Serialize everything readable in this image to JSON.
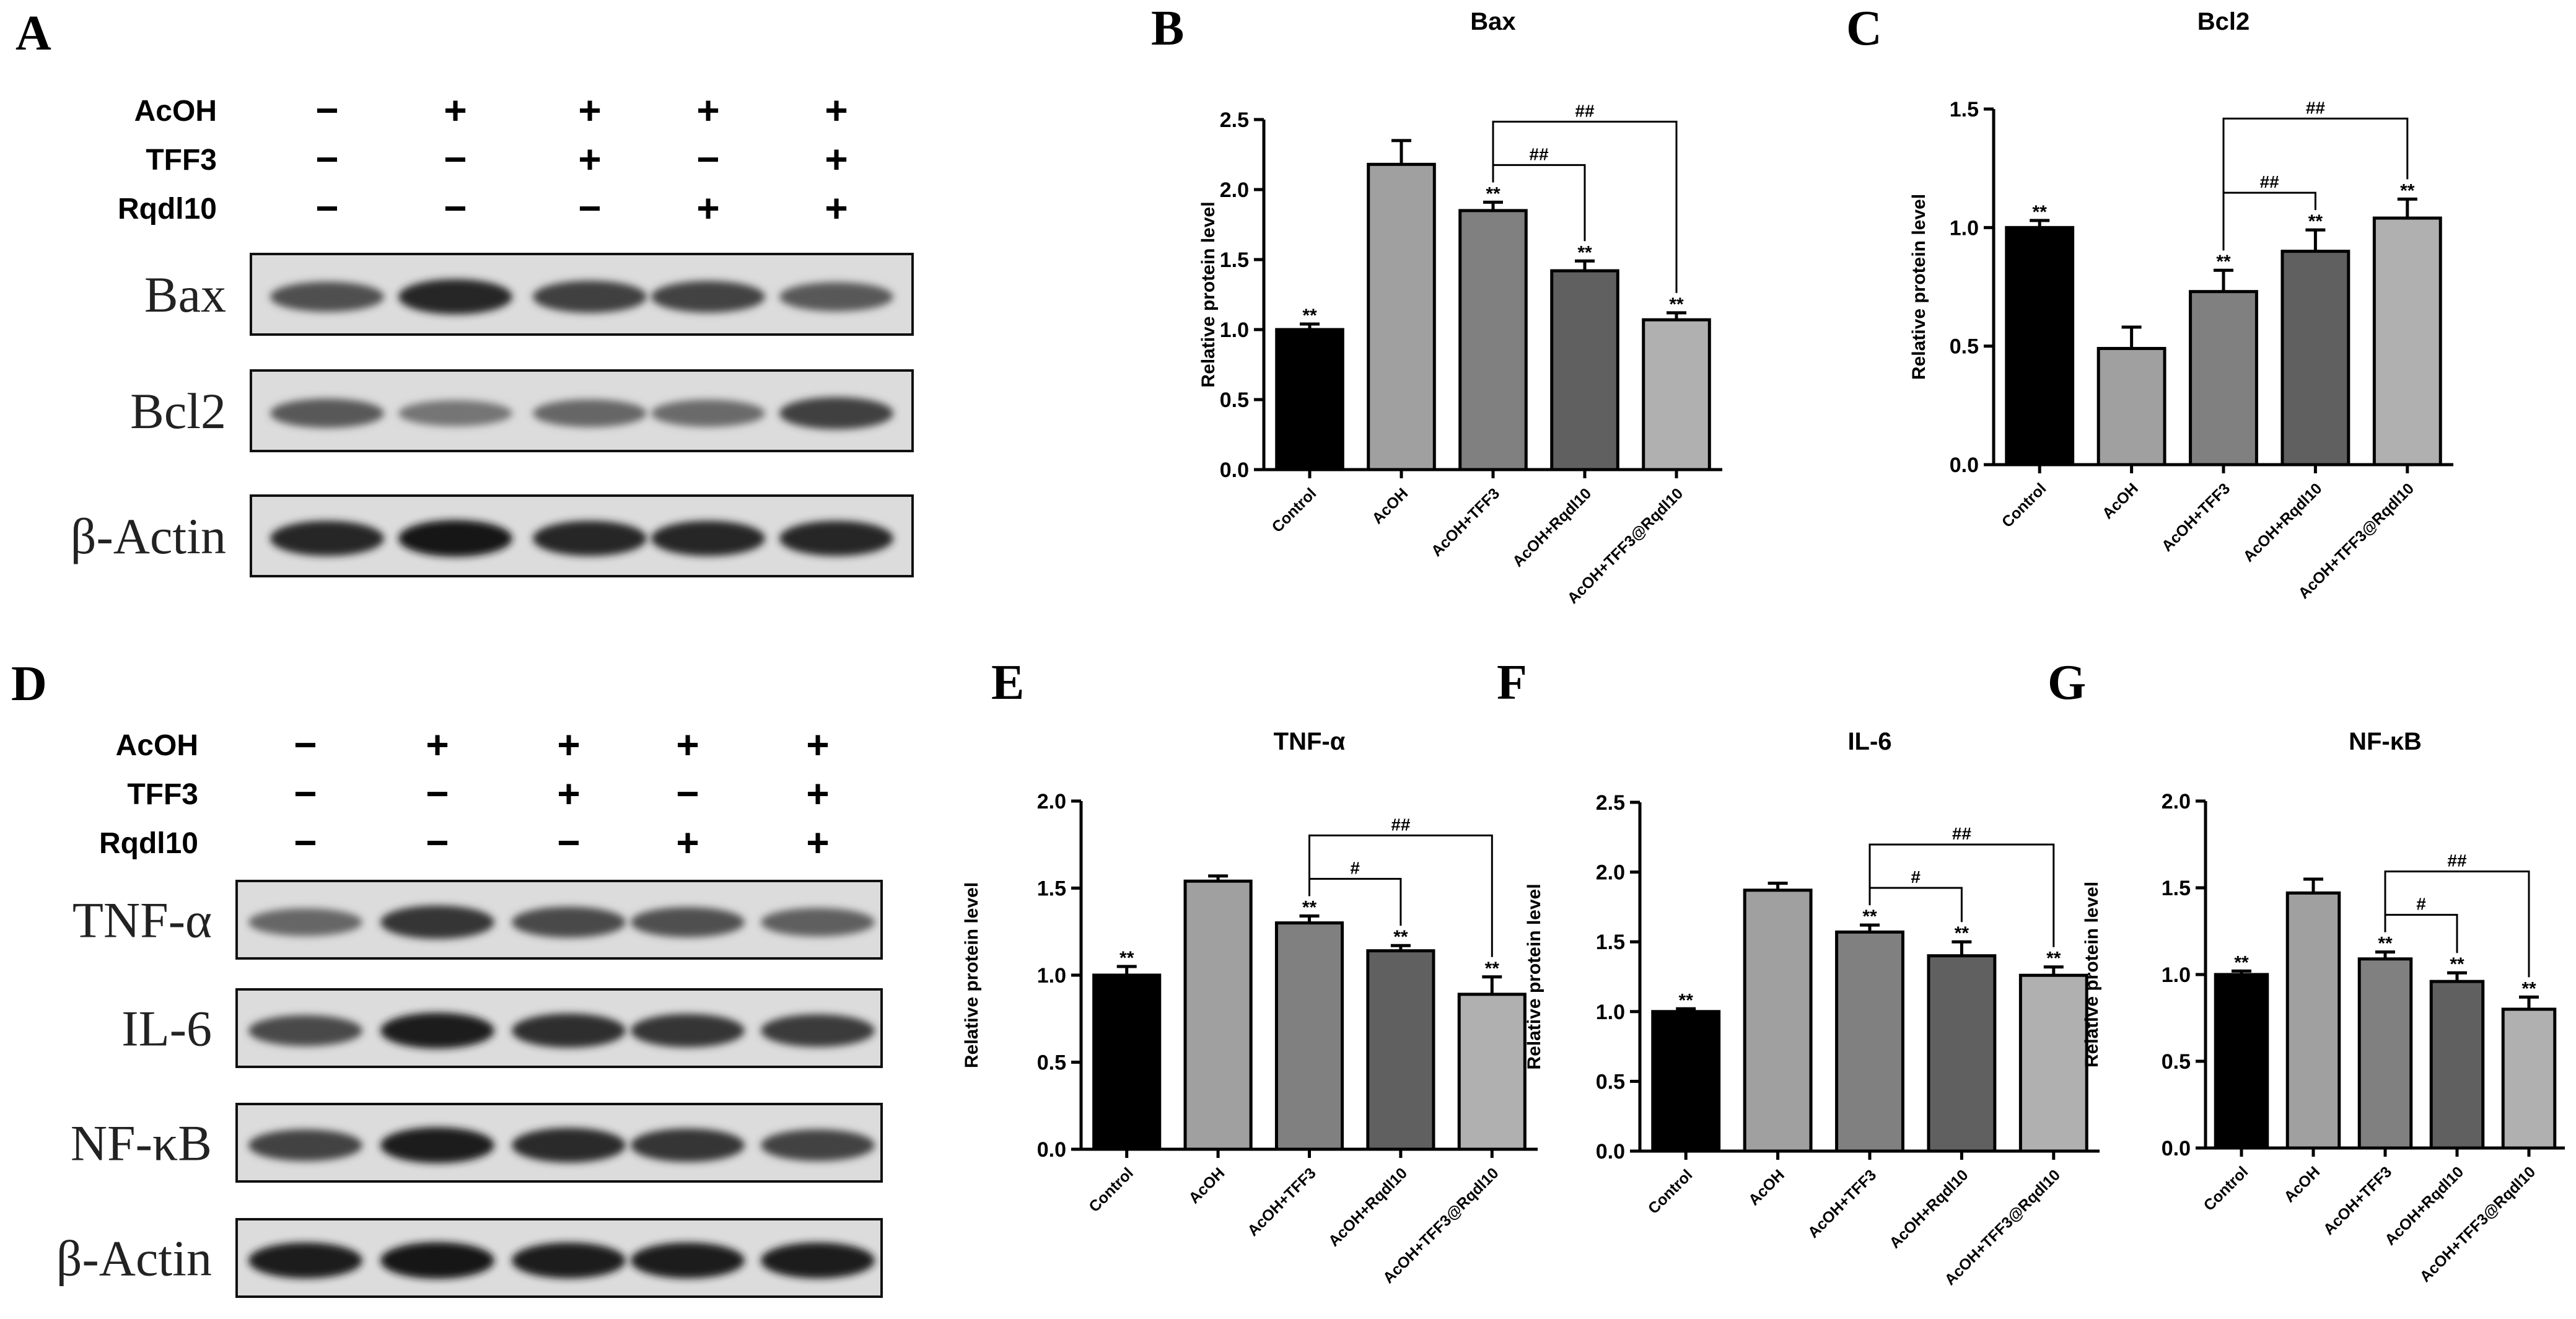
{
  "blot_panels": [
    {
      "letter": "A",
      "conditions": [
        {
          "name": "AcOH",
          "signs": [
            "−",
            "+",
            "+",
            "+",
            "+"
          ]
        },
        {
          "name": "TFF3",
          "signs": [
            "−",
            "−",
            "+",
            "−",
            "+"
          ]
        },
        {
          "name": "Rqdl10",
          "signs": [
            "−",
            "−",
            "−",
            "+",
            "+"
          ]
        }
      ],
      "proteins": [
        "Bax",
        "Bcl2",
        "β-Actin"
      ],
      "band_intensity": [
        [
          0.72,
          0.92,
          0.8,
          0.78,
          0.68
        ],
        [
          0.68,
          0.55,
          0.62,
          0.6,
          0.8
        ],
        [
          0.92,
          0.98,
          0.92,
          0.92,
          0.92
        ]
      ]
    },
    {
      "letter": "D",
      "conditions": [
        {
          "name": "AcOH",
          "signs": [
            "−",
            "+",
            "+",
            "+",
            "+"
          ]
        },
        {
          "name": "TFF3",
          "signs": [
            "−",
            "−",
            "+",
            "−",
            "+"
          ]
        },
        {
          "name": "Rqdl10",
          "signs": [
            "−",
            "−",
            "−",
            "+",
            "+"
          ]
        }
      ],
      "proteins": [
        "TNF-α",
        "IL-6",
        "NF-κB",
        "β-Actin"
      ],
      "band_intensity": [
        [
          0.62,
          0.85,
          0.75,
          0.72,
          0.65
        ],
        [
          0.75,
          0.95,
          0.88,
          0.85,
          0.82
        ],
        [
          0.78,
          0.95,
          0.9,
          0.85,
          0.78
        ],
        [
          0.95,
          0.98,
          0.95,
          0.95,
          0.95
        ]
      ]
    }
  ],
  "chart_data": [
    {
      "letter": "B",
      "type": "bar",
      "title": "Bax",
      "ylabel": "Relative protein level",
      "categories": [
        "Control",
        "AcOH",
        "AcOH+TFF3",
        "AcOH+Rqdl10",
        "AcOH+TFF3@Rqdl10"
      ],
      "values": [
        1.0,
        2.18,
        1.85,
        1.42,
        1.07
      ],
      "errors": [
        0.04,
        0.17,
        0.06,
        0.07,
        0.05
      ],
      "significance": [
        "**",
        "",
        "**",
        "**",
        "**"
      ],
      "colors": [
        "#000000",
        "#a0a0a0",
        "#808080",
        "#606060",
        "#b0b0b0"
      ],
      "ylim": [
        0,
        2.5
      ],
      "yticks": [
        "0.0",
        "0.5",
        "1.0",
        "1.5",
        "2.0",
        "2.5"
      ],
      "comparisons": [
        {
          "from": 2,
          "to": 3,
          "label": "##"
        },
        {
          "from": 2,
          "to": 4,
          "label": "##"
        }
      ]
    },
    {
      "letter": "C",
      "type": "bar",
      "title": "Bcl2",
      "ylabel": "Relative protein level",
      "categories": [
        "Control",
        "AcOH",
        "AcOH+TFF3",
        "AcOH+Rqdl10",
        "AcOH+TFF3@Rqdl10"
      ],
      "values": [
        1.0,
        0.49,
        0.73,
        0.9,
        1.04
      ],
      "errors": [
        0.03,
        0.09,
        0.09,
        0.09,
        0.08
      ],
      "significance": [
        "**",
        "",
        "**",
        "**",
        "**"
      ],
      "colors": [
        "#000000",
        "#a0a0a0",
        "#808080",
        "#606060",
        "#b0b0b0"
      ],
      "ylim": [
        0,
        1.5
      ],
      "yticks": [
        "0.0",
        "0.5",
        "1.0",
        "1.5"
      ],
      "comparisons": [
        {
          "from": 2,
          "to": 3,
          "label": "##"
        },
        {
          "from": 2,
          "to": 4,
          "label": "##"
        }
      ]
    },
    {
      "letter": "E",
      "type": "bar",
      "title": "TNF-α",
      "ylabel": "Relative protein level",
      "categories": [
        "Control",
        "AcOH",
        "AcOH+TFF3",
        "AcOH+Rqdl10",
        "AcOH+TFF3@Rqdl10"
      ],
      "values": [
        1.0,
        1.54,
        1.3,
        1.14,
        0.89
      ],
      "errors": [
        0.05,
        0.03,
        0.04,
        0.03,
        0.1
      ],
      "significance": [
        "**",
        "",
        "**",
        "**",
        "**"
      ],
      "colors": [
        "#000000",
        "#a0a0a0",
        "#808080",
        "#606060",
        "#b0b0b0"
      ],
      "ylim": [
        0,
        2.0
      ],
      "yticks": [
        "0.0",
        "0.5",
        "1.0",
        "1.5",
        "2.0"
      ],
      "comparisons": [
        {
          "from": 2,
          "to": 3,
          "label": "#"
        },
        {
          "from": 2,
          "to": 4,
          "label": "##"
        }
      ]
    },
    {
      "letter": "F",
      "type": "bar",
      "title": "IL-6",
      "ylabel": "Relative protein level",
      "categories": [
        "Control",
        "AcOH",
        "AcOH+TFF3",
        "AcOH+Rqdl10",
        "AcOH+TFF3@Rqdl10"
      ],
      "values": [
        1.0,
        1.87,
        1.57,
        1.4,
        1.26
      ],
      "errors": [
        0.02,
        0.05,
        0.05,
        0.1,
        0.06
      ],
      "significance": [
        "**",
        "",
        "**",
        "**",
        "**"
      ],
      "colors": [
        "#000000",
        "#a0a0a0",
        "#808080",
        "#606060",
        "#b0b0b0"
      ],
      "ylim": [
        0,
        2.5
      ],
      "yticks": [
        "0.0",
        "0.5",
        "1.0",
        "1.5",
        "2.0",
        "2.5"
      ],
      "comparisons": [
        {
          "from": 2,
          "to": 3,
          "label": "#"
        },
        {
          "from": 2,
          "to": 4,
          "label": "##"
        }
      ]
    },
    {
      "letter": "G",
      "type": "bar",
      "title": "NF-κB",
      "ylabel": "Relative protein level",
      "categories": [
        "Control",
        "AcOH",
        "AcOH+TFF3",
        "AcOH+Rqdl10",
        "AcOH+TFF3@Rqdl10"
      ],
      "values": [
        1.0,
        1.47,
        1.09,
        0.96,
        0.8
      ],
      "errors": [
        0.02,
        0.08,
        0.04,
        0.05,
        0.07
      ],
      "significance": [
        "**",
        "",
        "**",
        "**",
        "**"
      ],
      "colors": [
        "#000000",
        "#a0a0a0",
        "#808080",
        "#606060",
        "#b0b0b0"
      ],
      "ylim": [
        0,
        2.0
      ],
      "yticks": [
        "0.0",
        "0.5",
        "1.0",
        "1.5",
        "2.0"
      ],
      "comparisons": [
        {
          "from": 2,
          "to": 3,
          "label": "#"
        },
        {
          "from": 2,
          "to": 4,
          "label": "##"
        }
      ]
    }
  ]
}
